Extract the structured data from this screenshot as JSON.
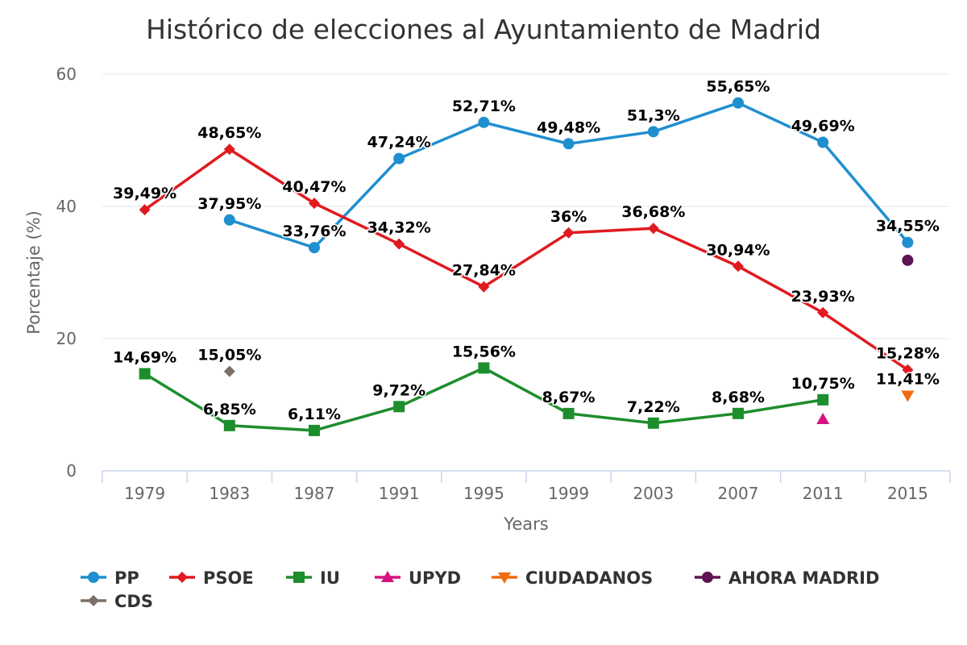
{
  "chart_data": {
    "type": "line",
    "title": "Histórico de elecciones al Ayuntamiento de Madrid",
    "xlabel": "Years",
    "ylabel": "Porcentaje (%)",
    "ylim": [
      0,
      60
    ],
    "yticks": [
      0,
      20,
      40,
      60
    ],
    "grid": true,
    "legend_position": "bottom",
    "categories": [
      "1979",
      "1983",
      "1987",
      "1991",
      "1995",
      "1999",
      "2003",
      "2007",
      "2011",
      "2015"
    ],
    "series": [
      {
        "name": "PP",
        "color": "#1f8fcf",
        "marker": "circle",
        "values": [
          null,
          37.95,
          33.76,
          47.24,
          52.71,
          49.48,
          51.3,
          55.65,
          49.69,
          34.55
        ],
        "labels": [
          null,
          "37,95%",
          "33,76%",
          "47,24%",
          "52,71%",
          "49,48%",
          "51,3%",
          "55,65%",
          "49,69%",
          "34,55%"
        ]
      },
      {
        "name": "PSOE",
        "color": "#e01a1f",
        "marker": "diamond",
        "values": [
          39.49,
          48.65,
          40.47,
          34.32,
          27.84,
          36.0,
          36.68,
          30.94,
          23.93,
          15.28
        ],
        "labels": [
          "39,49%",
          "48,65%",
          "40,47%",
          "34,32%",
          "27,84%",
          "36%",
          "36,68%",
          "30,94%",
          "23,93%",
          "15,28%"
        ]
      },
      {
        "name": "IU",
        "color": "#1d8e2c",
        "marker": "square",
        "values": [
          14.69,
          6.85,
          6.11,
          9.72,
          15.56,
          8.67,
          7.22,
          8.68,
          10.75,
          null
        ],
        "labels": [
          "14,69%",
          "6,85%",
          "6,11%",
          "9,72%",
          "15,56%",
          "8,67%",
          "7,22%",
          "8,68%",
          "10,75%",
          null
        ]
      },
      {
        "name": "UPYD",
        "color": "#d6137f",
        "marker": "triangle",
        "values": [
          null,
          null,
          null,
          null,
          null,
          null,
          null,
          null,
          7.8,
          null
        ],
        "labels": [
          null,
          null,
          null,
          null,
          null,
          null,
          null,
          null,
          null,
          null
        ]
      },
      {
        "name": "CIUDADANOS",
        "color": "#f26b0f",
        "marker": "triangle-down",
        "values": [
          null,
          null,
          null,
          null,
          null,
          null,
          null,
          null,
          null,
          11.41
        ],
        "labels": [
          null,
          null,
          null,
          null,
          null,
          null,
          null,
          null,
          null,
          "11,41%"
        ]
      },
      {
        "name": "AHORA MADRID",
        "color": "#5e1352",
        "marker": "circle",
        "values": [
          null,
          null,
          null,
          null,
          null,
          null,
          null,
          null,
          null,
          31.85
        ],
        "labels": [
          null,
          null,
          null,
          null,
          null,
          null,
          null,
          null,
          null,
          null
        ]
      },
      {
        "name": "CDS",
        "color": "#7b6f68",
        "marker": "diamond",
        "values": [
          null,
          15.05,
          null,
          null,
          null,
          null,
          null,
          null,
          null,
          null
        ],
        "labels": [
          null,
          "15,05%",
          null,
          null,
          null,
          null,
          null,
          null,
          null,
          null
        ]
      }
    ]
  }
}
